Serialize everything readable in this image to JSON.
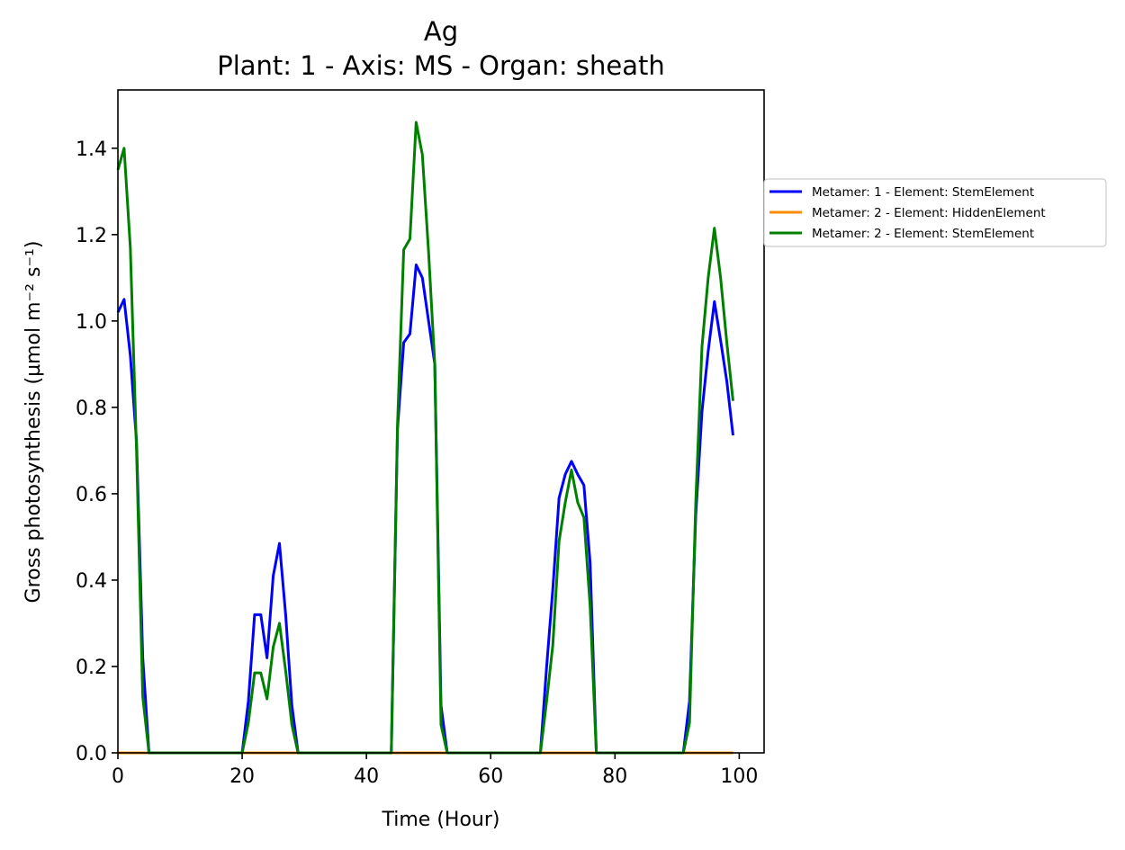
{
  "chart_data": {
    "type": "line",
    "title": "Ag",
    "subtitle": "Plant: 1 - Axis: MS - Organ: sheath",
    "xlabel": "Time (Hour)",
    "ylabel": "Gross photosynthesis (µmol m⁻² s⁻¹)",
    "xlim": [
      0,
      104
    ],
    "ylim": [
      0,
      1.535
    ],
    "xticks": [
      0,
      20,
      40,
      60,
      80,
      100
    ],
    "yticks": [
      0.0,
      0.2,
      0.4,
      0.6,
      0.8,
      1.0,
      1.2,
      1.4
    ],
    "xtick_labels": [
      "0",
      "20",
      "40",
      "60",
      "80",
      "100"
    ],
    "ytick_labels": [
      "0.0",
      "0.2",
      "0.4",
      "0.6",
      "0.8",
      "1.0",
      "1.2",
      "1.4"
    ],
    "grid": false,
    "legend_position": "outside-right",
    "series": [
      {
        "name": "Metamer: 1 - Element: StemElement",
        "color": "#0000ff",
        "x": [
          0,
          1,
          2,
          3,
          4,
          5,
          20,
          21,
          22,
          23,
          24,
          25,
          26,
          27,
          28,
          29,
          44,
          45,
          46,
          47,
          48,
          49,
          50,
          51,
          52,
          53,
          68,
          69,
          70,
          71,
          72,
          73,
          74,
          75,
          76,
          77,
          91,
          92,
          93,
          94,
          95,
          96,
          97,
          98,
          99
        ],
        "y": [
          1.02,
          1.05,
          0.92,
          0.72,
          0.22,
          0.0,
          0.0,
          0.12,
          0.32,
          0.32,
          0.22,
          0.41,
          0.485,
          0.32,
          0.11,
          0.0,
          0.0,
          0.75,
          0.95,
          0.97,
          1.13,
          1.1,
          1.0,
          0.9,
          0.11,
          0.0,
          0.0,
          0.2,
          0.38,
          0.59,
          0.645,
          0.675,
          0.645,
          0.62,
          0.44,
          0.0,
          0.0,
          0.12,
          0.55,
          0.79,
          0.93,
          1.045,
          0.955,
          0.86,
          0.735
        ]
      },
      {
        "name": "Metamer: 2 - Element: HiddenElement",
        "color": "#ff8c00",
        "x": [
          0,
          99
        ],
        "y": [
          0.0,
          0.0
        ]
      },
      {
        "name": "Metamer: 2 - Element: StemElement",
        "color": "#008000",
        "x": [
          0,
          1,
          2,
          3,
          4,
          5,
          20,
          21,
          22,
          23,
          24,
          25,
          26,
          27,
          28,
          29,
          44,
          45,
          46,
          47,
          48,
          49,
          50,
          51,
          52,
          53,
          68,
          69,
          70,
          71,
          72,
          73,
          74,
          75,
          76,
          77,
          91,
          92,
          93,
          94,
          95,
          96,
          97,
          98,
          99
        ],
        "y": [
          1.35,
          1.4,
          1.17,
          0.7,
          0.13,
          0.0,
          0.0,
          0.07,
          0.185,
          0.185,
          0.125,
          0.245,
          0.3,
          0.19,
          0.065,
          0.0,
          0.0,
          0.76,
          1.165,
          1.19,
          1.46,
          1.385,
          1.16,
          0.9,
          0.065,
          0.0,
          0.0,
          0.12,
          0.25,
          0.49,
          0.58,
          0.655,
          0.58,
          0.545,
          0.34,
          0.0,
          0.0,
          0.07,
          0.58,
          0.94,
          1.1,
          1.215,
          1.1,
          0.95,
          0.815
        ]
      }
    ]
  }
}
